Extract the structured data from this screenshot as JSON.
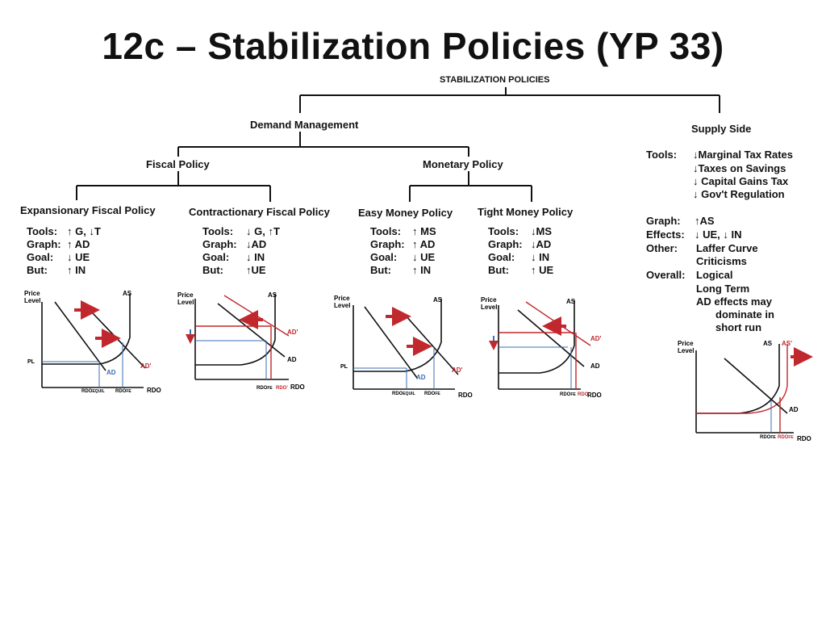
{
  "title": "12c – Stabilization Policies (YP 33)",
  "tree": {
    "root": "STABILIZATION POLICIES",
    "demand": "Demand Management",
    "supply": "Supply Side",
    "fiscal": "Fiscal Policy",
    "monetary": "Monetary Policy"
  },
  "columns": [
    {
      "header": "Expansionary Fiscal Policy",
      "rows": [
        [
          "Tools:",
          "↑ G, ↓T"
        ],
        [
          "Graph:",
          "↑ AD"
        ],
        [
          "Goal:",
          "↓ UE"
        ],
        [
          "But:",
          "↑ IN"
        ]
      ]
    },
    {
      "header": "Contractionary Fiscal Policy",
      "rows": [
        [
          "Tools:",
          "↓ G, ↑T"
        ],
        [
          "Graph:",
          "↓AD"
        ],
        [
          "Goal:",
          "↓ IN"
        ],
        [
          "But:",
          "↑UE"
        ]
      ]
    },
    {
      "header": "Easy Money Policy",
      "rows": [
        [
          "Tools:",
          "↑ MS"
        ],
        [
          "Graph:",
          "↑ AD"
        ],
        [
          "Goal:",
          "↓ UE"
        ],
        [
          "But:",
          "↑ IN"
        ]
      ]
    },
    {
      "header": "Tight Money Policy",
      "rows": [
        [
          "Tools:",
          "↓MS"
        ],
        [
          "Graph:",
          "↓AD"
        ],
        [
          "Goal:",
          "↓ IN"
        ],
        [
          "But:",
          "↑ UE"
        ]
      ]
    }
  ],
  "supply_side": {
    "tools_label": "Tools:",
    "tools": [
      "↓Marginal Tax Rates",
      "↓Taxes on Savings",
      "↓ Capital Gains Tax",
      "↓ Gov't Regulation"
    ],
    "graph_label": "Graph:",
    "graph": "↑AS",
    "effects_label": "Effects:",
    "effects": "↓ UE,  ↓ IN",
    "other_label": "Other:",
    "other": [
      "Laffer Curve",
      "Criticisms"
    ],
    "overall_label": "Overall:",
    "overall": [
      "Logical",
      "Long Term",
      "AD effects may",
      "dominate in",
      "short run"
    ]
  },
  "graph_labels": {
    "price": "Price",
    "level": "Level",
    "pl": "PL",
    "as": "AS",
    "as_prime": "AS'",
    "ad": "AD",
    "ad_prime": "AD'",
    "rdo_axis": "RDO",
    "rdo": "RDO",
    "equil": "EQUIL",
    "fe": "FE",
    "rdo_prime": "RDO'"
  },
  "colors": {
    "red": "#c0282d",
    "blue": "#3a6fb0",
    "line": "#111111"
  }
}
